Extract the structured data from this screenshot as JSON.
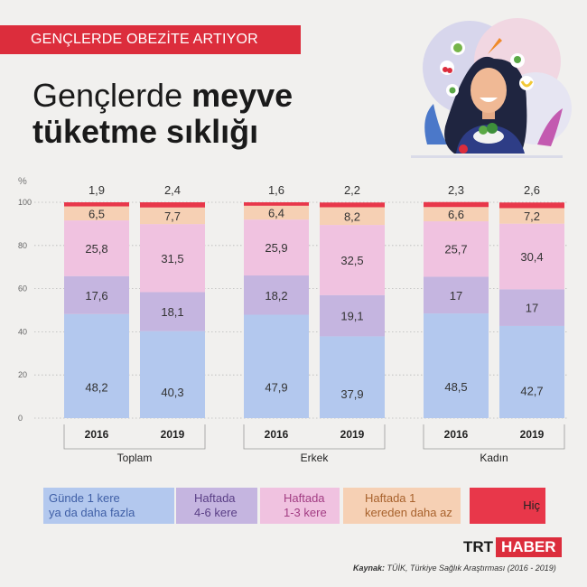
{
  "header": {
    "banner": "GENÇLERDE OBEZİTE ARTIYOR",
    "title_line1_regular": "Gençlerde ",
    "title_line1_bold": "meyve",
    "title_line2_bold": "tüketme sıklığı"
  },
  "chart_data": {
    "type": "bar",
    "stacked": true,
    "y_unit": "%",
    "ylim": [
      0,
      100
    ],
    "yticks": [
      0,
      20,
      40,
      60,
      80,
      100
    ],
    "groups": [
      "Toplam",
      "Erkek",
      "Kadın"
    ],
    "categories": [
      "2016",
      "2019",
      "2016",
      "2019",
      "2016",
      "2019"
    ],
    "series": [
      {
        "name": "Günde 1 kere ya da daha fazla",
        "color": "#b3c8ee",
        "values": [
          48.2,
          40.3,
          47.9,
          37.9,
          48.5,
          42.7
        ]
      },
      {
        "name": "Haftada 4-6 kere",
        "color": "#c5b5e0",
        "values": [
          17.6,
          18.1,
          18.2,
          19.1,
          17,
          17
        ]
      },
      {
        "name": "Haftada 1-3 kere",
        "color": "#f0c2e0",
        "values": [
          25.8,
          31.5,
          25.9,
          32.5,
          25.7,
          30.4
        ]
      },
      {
        "name": "Haftada 1 kereden daha az",
        "color": "#f6d0b4",
        "values": [
          6.5,
          7.7,
          6.4,
          8.2,
          6.6,
          7.2
        ]
      },
      {
        "name": "Hiç",
        "color": "#e8374a",
        "values": [
          1.9,
          2.4,
          1.6,
          2.2,
          2.3,
          2.6
        ]
      }
    ],
    "value_labels": [
      [
        "48,2",
        "40,3",
        "47,9",
        "37,9",
        "48,5",
        "42,7"
      ],
      [
        "17,6",
        "18,1",
        "18,2",
        "19,1",
        "17",
        "17"
      ],
      [
        "25,8",
        "31,5",
        "25,9",
        "32,5",
        "25,7",
        "30,4"
      ],
      [
        "6,5",
        "7,7",
        "6,4",
        "8,2",
        "6,6",
        "7,2"
      ],
      [
        "1,9",
        "2,4",
        "1,6",
        "2,2",
        "2,3",
        "2,6"
      ]
    ]
  },
  "legend": {
    "items": [
      {
        "line1": "Günde 1 kere",
        "line2": "ya da daha fazla",
        "color": "#b3c8ee"
      },
      {
        "line1": "Haftada",
        "line2": "4-6 kere",
        "color": "#c5b5e0"
      },
      {
        "line1": "Haftada",
        "line2": "1-3 kere",
        "color": "#f0c2e0"
      },
      {
        "line1": "Haftada 1",
        "line2": "kereden daha az",
        "color": "#f6d0b4"
      },
      {
        "line1": "Hiç",
        "line2": "",
        "color": "#e8374a"
      }
    ]
  },
  "footer": {
    "logo_trt": "TRT",
    "logo_haber": "HABER",
    "source_label": "Kaynak:",
    "source_text": " TÜİK, Türkiye Sağlık Araştırması (2016 - 2019)"
  },
  "icons": {
    "illustration": "woman-eating-salad-illustration"
  }
}
